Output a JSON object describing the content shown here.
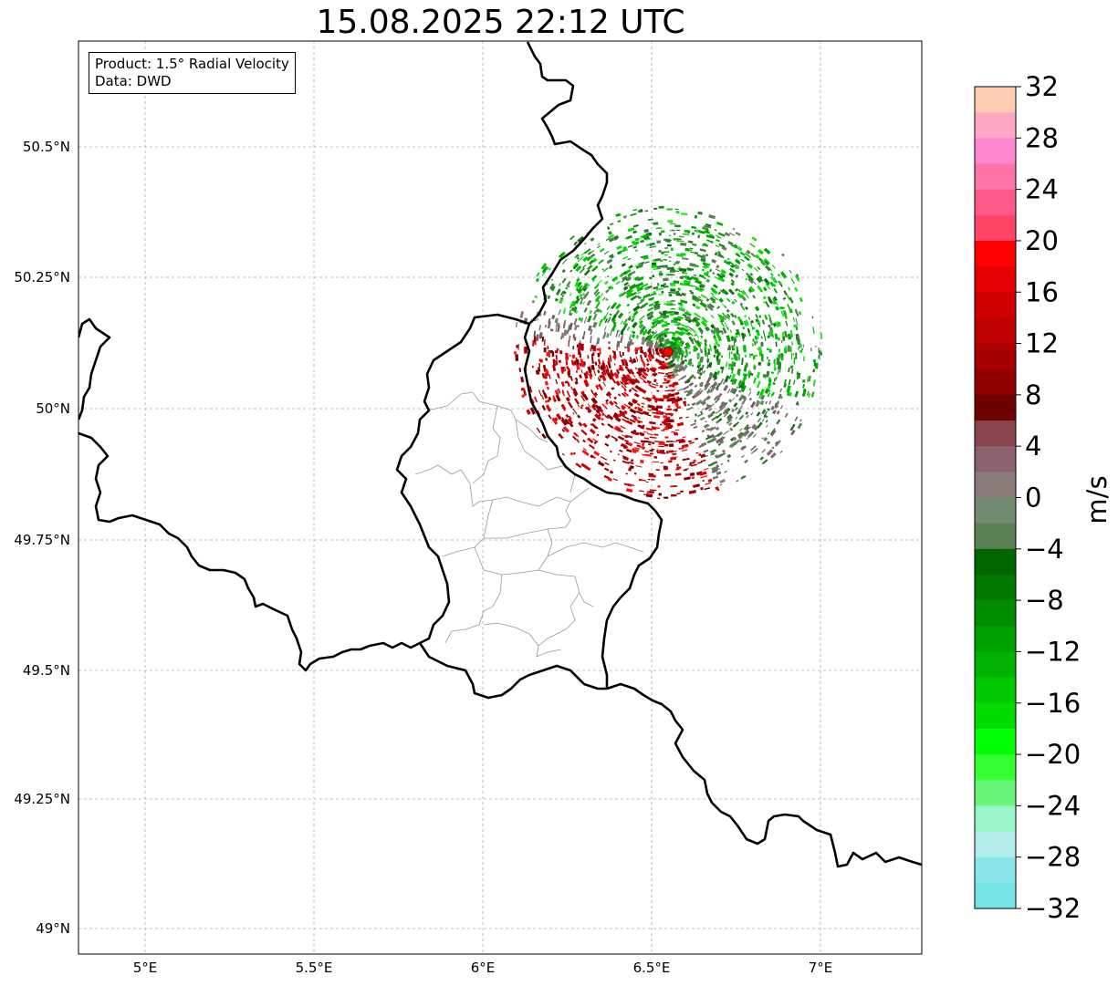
{
  "title": "15.08.2025 22:12 UTC",
  "info_box": {
    "product": "Product: 1.5° Radial Velocity",
    "data": "Data: DWD"
  },
  "map": {
    "lat_labels": [
      "50.5°N",
      "50.25°N",
      "50°N",
      "49.75°N",
      "49.5°N",
      "49.25°N",
      "49°N"
    ],
    "lon_labels": [
      "5°E",
      "5.5°E",
      "6°E",
      "6.5°E",
      "7°E"
    ]
  },
  "colorbar": {
    "unit": "m/s",
    "tick_labels": [
      "32",
      "28",
      "24",
      "20",
      "16",
      "12",
      "8",
      "4",
      "0",
      "−4",
      "−8",
      "−12",
      "−16",
      "−20",
      "−24",
      "−28",
      "−32"
    ],
    "range": [
      -32,
      32
    ],
    "step": 2.5,
    "colors_top_to_bottom": [
      "#ffcdb0",
      "#ffa8c4",
      "#ff88d0",
      "#ff74a8",
      "#ff5a88",
      "#ff4466",
      "#ff0000",
      "#e20000",
      "#d00000",
      "#bd0000",
      "#a80000",
      "#900000",
      "#6e0000",
      "#8a444d",
      "#8b6171",
      "#8a7b78",
      "#718a70",
      "#5c8055",
      "#006400",
      "#007800",
      "#008c00",
      "#009f00",
      "#00b200",
      "#00c800",
      "#00dc00",
      "#00ff00",
      "#33ff33",
      "#66f577",
      "#99f5c5",
      "#b4ece9",
      "#8ae6eb",
      "#74e4e6"
    ]
  },
  "colors": {
    "inbound": "#00c000",
    "outbound": "#cc0000",
    "radar_site": "#ff0000"
  }
}
